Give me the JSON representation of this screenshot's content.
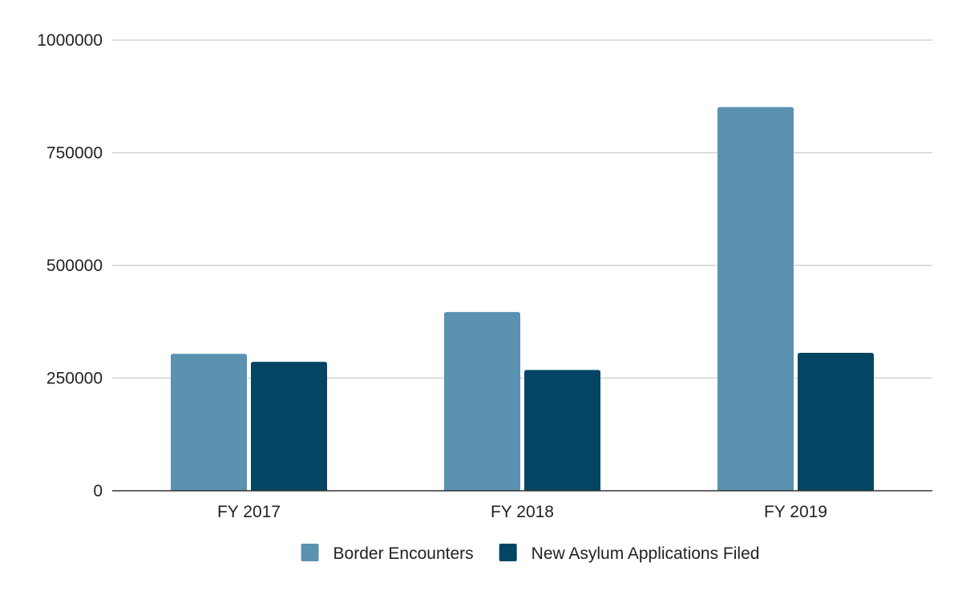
{
  "chart_data": {
    "type": "bar",
    "title": "",
    "xlabel": "",
    "ylabel": "",
    "categories": [
      "FY 2017",
      "FY 2018",
      "FY 2019"
    ],
    "series": [
      {
        "name": "Border Encounters",
        "color": "#5a92b0",
        "values": [
          303916,
          396579,
          851508
        ]
      },
      {
        "name": "New Asylum Applications Filed",
        "color": "#034562",
        "values": [
          286000,
          268000,
          306000
        ]
      }
    ],
    "ylim": [
      0,
      1000000
    ],
    "yticks": [
      0,
      250000,
      500000,
      750000,
      1000000
    ],
    "ytick_labels": [
      "0",
      "250000",
      "500000",
      "750000",
      "1000000"
    ],
    "grid": true,
    "legend": "bottom"
  }
}
